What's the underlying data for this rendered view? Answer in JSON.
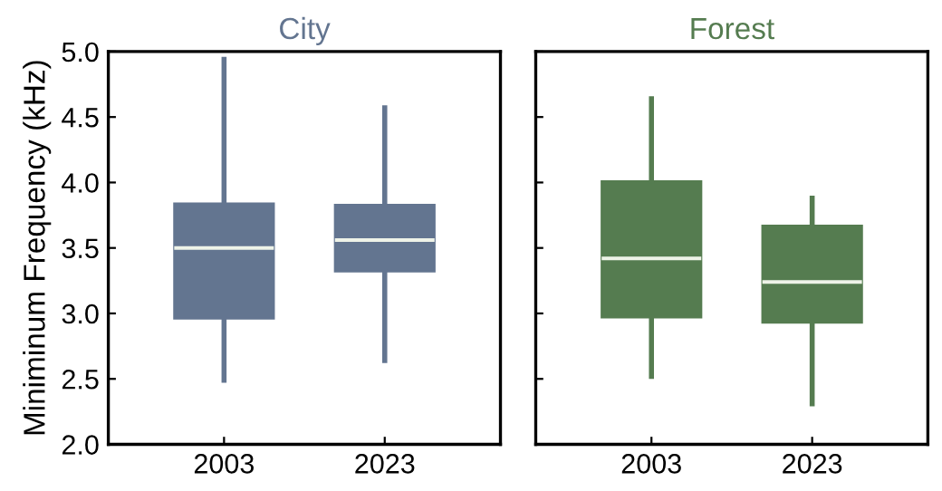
{
  "chart_data": [
    {
      "type": "box",
      "title": "City",
      "ylabel": "Miniminum Frequency (kHz)",
      "categories": [
        "2003",
        "2023"
      ],
      "color": "#637590",
      "boxes": [
        {
          "low": 2.49,
          "q1": 2.96,
          "median": 3.5,
          "q3": 3.84,
          "high": 4.94
        },
        {
          "low": 2.64,
          "q1": 3.32,
          "median": 3.56,
          "q3": 3.83,
          "high": 4.57
        }
      ],
      "ylim": [
        2.0,
        5.0
      ],
      "yticks": [
        {
          "value": 2.0,
          "label": "2.0"
        },
        {
          "value": 2.5,
          "label": "2.5"
        },
        {
          "value": 3.0,
          "label": "3.0"
        },
        {
          "value": 3.5,
          "label": "3.5"
        },
        {
          "value": 4.0,
          "label": "4.0"
        },
        {
          "value": 4.5,
          "label": "4.5"
        },
        {
          "value": 5.0,
          "label": "5.0"
        }
      ],
      "grid": false
    },
    {
      "type": "box",
      "title": "Forest",
      "categories": [
        "2003",
        "2023"
      ],
      "color": "#557c50",
      "boxes": [
        {
          "low": 2.52,
          "q1": 2.97,
          "median": 3.42,
          "q3": 4.01,
          "high": 4.64
        },
        {
          "low": 2.31,
          "q1": 2.93,
          "median": 3.24,
          "q3": 3.67,
          "high": 3.88
        }
      ],
      "ylim": [
        2.0,
        5.0
      ],
      "yticks": [
        {
          "value": 2.0,
          "label": null
        },
        {
          "value": 2.5,
          "label": null
        },
        {
          "value": 3.0,
          "label": null
        },
        {
          "value": 3.5,
          "label": null
        },
        {
          "value": 4.0,
          "label": null
        },
        {
          "value": 4.5,
          "label": null
        },
        {
          "value": 5.0,
          "label": null
        }
      ],
      "tick_labels": "x",
      "grid": false
    }
  ]
}
